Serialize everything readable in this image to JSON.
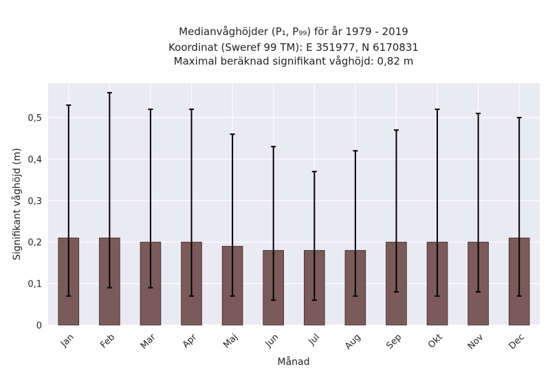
{
  "chart_data": {
    "type": "bar",
    "title_lines": [
      "Medianvåghöjder (P₁, P₉₉) för år 1979 - 2019",
      "Koordinat (Sweref 99 TM): E 351977, N 6170831",
      "Maximal beräknad signifikant våghöjd: 0,82 m"
    ],
    "xlabel": "Månad",
    "ylabel": "Signifikant våghöjd (m)",
    "categories": [
      "Jan",
      "Feb",
      "Mar",
      "Apr",
      "Maj",
      "Jun",
      "Jul",
      "Aug",
      "Sep",
      "Okt",
      "Nov",
      "Dec"
    ],
    "values": [
      0.21,
      0.21,
      0.2,
      0.2,
      0.19,
      0.18,
      0.18,
      0.18,
      0.2,
      0.2,
      0.2,
      0.21
    ],
    "p1": [
      0.07,
      0.09,
      0.09,
      0.07,
      0.07,
      0.06,
      0.06,
      0.07,
      0.08,
      0.07,
      0.08,
      0.07
    ],
    "p99": [
      0.53,
      0.56,
      0.52,
      0.52,
      0.46,
      0.43,
      0.37,
      0.42,
      0.47,
      0.52,
      0.51,
      0.5
    ],
    "ylim": [
      0,
      0.583
    ],
    "yticks": [
      0,
      0.1,
      0.2,
      0.3,
      0.4,
      0.5
    ],
    "ytick_labels": [
      "0",
      "0,1",
      "0,2",
      "0,3",
      "0,4",
      "0,5"
    ],
    "grid": true,
    "colors": {
      "bar": "#7b5a5a",
      "bar_edge": "#3a2a2a",
      "error": "#000000",
      "plot_bg": "#eaeaf2",
      "grid": "#ffffff"
    }
  }
}
